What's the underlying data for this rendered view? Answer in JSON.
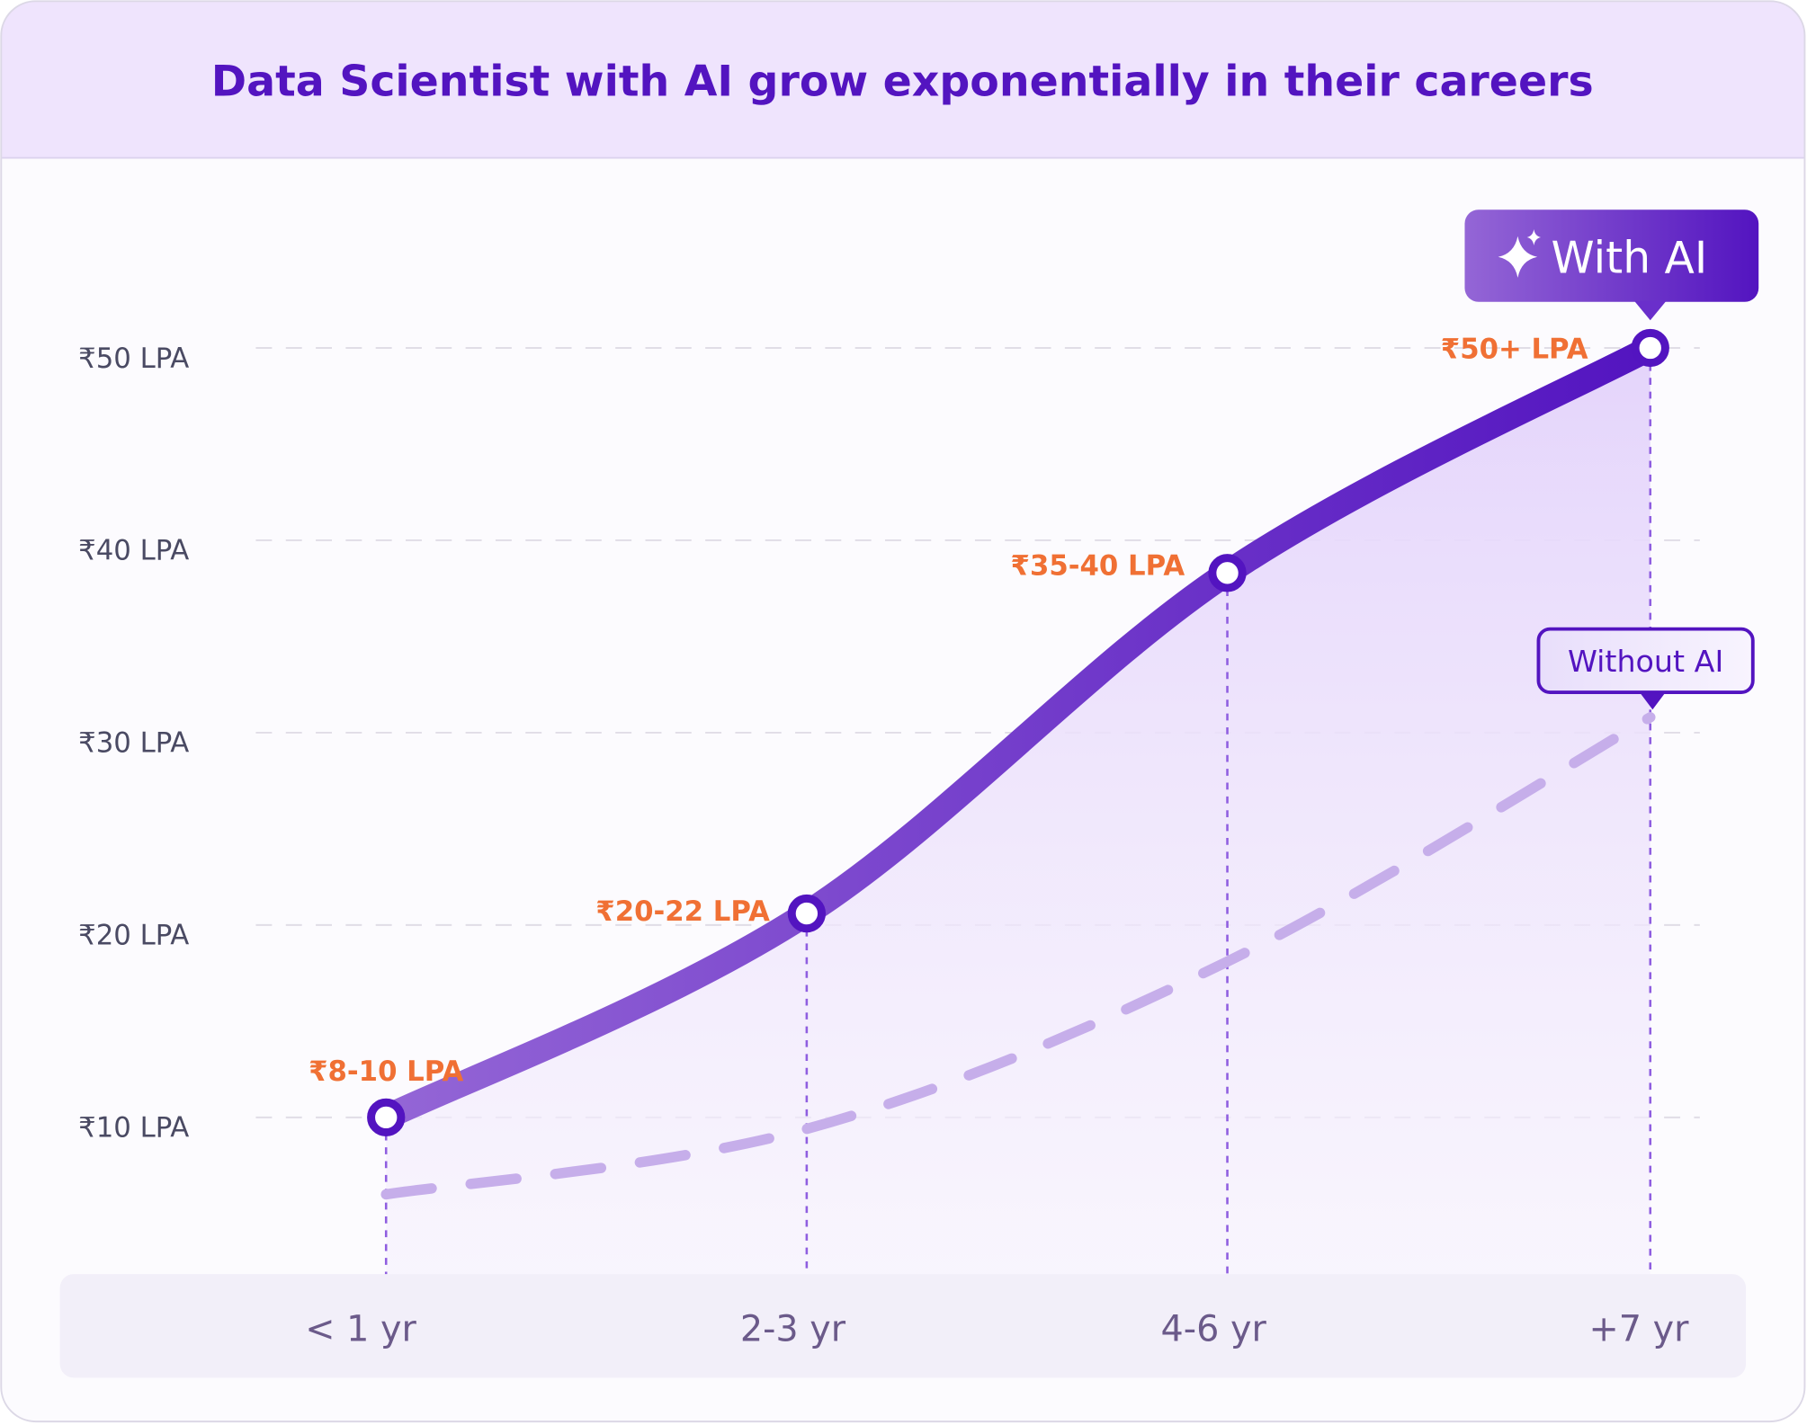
{
  "chart_data": {
    "type": "line",
    "title": "Data Scientist with AI grow exponentially in their careers",
    "categories": [
      "< 1 yr",
      "2-3 yr",
      "4-6 yr",
      "+7 yr"
    ],
    "y_ticks": [
      {
        "value": 10,
        "label": "₹10 LPA"
      },
      {
        "value": 20,
        "label": "₹20 LPA"
      },
      {
        "value": 30,
        "label": "₹30 LPA"
      },
      {
        "value": 40,
        "label": "₹40 LPA"
      },
      {
        "value": 50,
        "label": "₹50 LPA"
      }
    ],
    "ylim": [
      4,
      57
    ],
    "grid": true,
    "series": [
      {
        "name": "With AI",
        "values": [
          10,
          20.6,
          38.3,
          50
        ],
        "data_labels": [
          "₹8-10 LPA",
          "₹20-22 LPA",
          "₹35-40 LPA",
          "₹50+ LPA"
        ],
        "style": "solid",
        "color_start": "#9466d6",
        "color_end": "#5314c0"
      },
      {
        "name": "Without AI",
        "values": [
          6,
          9.4,
          18.1,
          30.8
        ],
        "style": "dashed",
        "color": "#c6aeea"
      }
    ],
    "colors": {
      "title": "#5314c0",
      "header_bg": "#efe4fd",
      "data_label": "#f07034",
      "axis_band": "#f2eff9",
      "marker_stroke": "#5314c0"
    },
    "icons": {
      "with_ai_badge": "sparkle-icon"
    }
  }
}
